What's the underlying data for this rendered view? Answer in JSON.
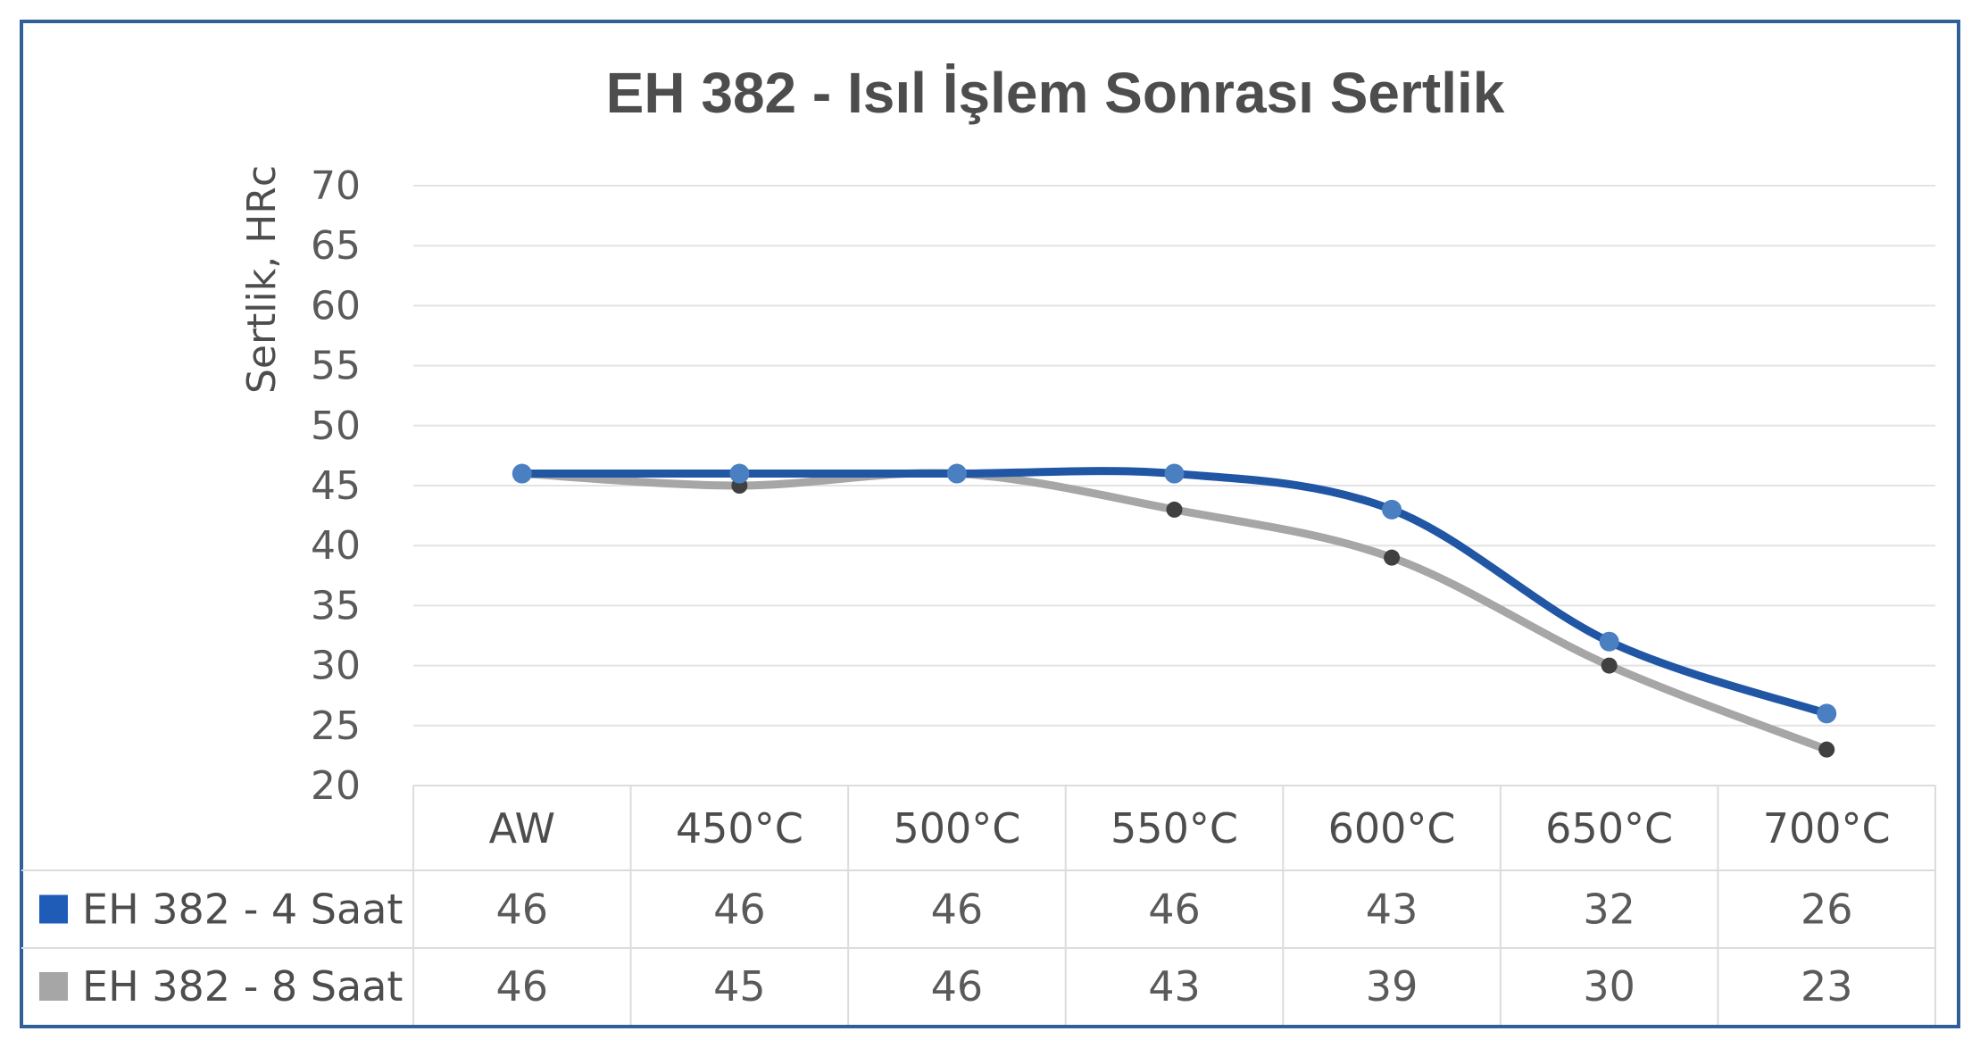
{
  "chart_data": {
    "type": "line",
    "title": "EH 382 - Isıl İşlem Sonrası Sertlik",
    "ylabel": "Sertlik, HRc",
    "xlabel": "",
    "ylim": [
      20,
      70
    ],
    "yticks": [
      20,
      25,
      30,
      35,
      40,
      45,
      50,
      55,
      60,
      65,
      70
    ],
    "categories": [
      "AW",
      "450°C",
      "500°C",
      "550°C",
      "600°C",
      "650°C",
      "700°C"
    ],
    "series": [
      {
        "name": "EH 382 - 4 Saat",
        "values": [
          46,
          46,
          46,
          46,
          43,
          32,
          26
        ],
        "line_color": "#2156a5",
        "marker_color": "#4a7fc1",
        "legend_color": "#1f5cb8"
      },
      {
        "name": "EH 382 - 8 Saat",
        "values": [
          46,
          45,
          46,
          43,
          39,
          30,
          23
        ],
        "line_color": "#a6a6a6",
        "marker_color": "#404040",
        "legend_color": "#a6a6a6"
      }
    ],
    "grid": true,
    "legend": "data-table-bottom"
  }
}
